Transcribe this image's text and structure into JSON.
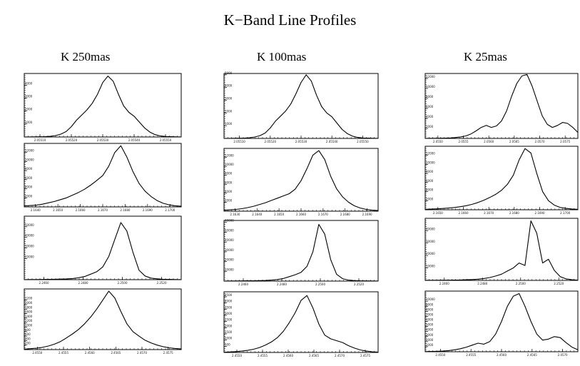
{
  "title": "K−Band Line Profiles",
  "columns": [
    {
      "label": "K 250mas"
    },
    {
      "label": "K 100mas"
    },
    {
      "label": "K 25mas"
    }
  ],
  "chart_data": [
    {
      "type": "line",
      "panel": "K 250mas row 1",
      "x": [
        2.05,
        2.0505,
        2.051,
        2.0515,
        2.052,
        2.0525,
        2.053,
        2.0535,
        2.054,
        2.0545,
        2.055,
        2.0555,
        2.056,
        2.0565,
        2.057,
        2.0575,
        2.058,
        2.0585,
        2.059,
        2.0595,
        2.06,
        2.0605,
        2.061,
        2.0615,
        2.062,
        2.0625,
        2.063,
        2.0635,
        2.064,
        2.0645,
        2.065
      ],
      "values": [
        5,
        8,
        12,
        18,
        30,
        55,
        110,
        220,
        420,
        800,
        1300,
        1700,
        2100,
        2600,
        3300,
        4200,
        4700,
        4300,
        3300,
        2400,
        1900,
        1600,
        1150,
        700,
        380,
        180,
        80,
        40,
        20,
        10,
        5
      ],
      "x_ticks": [
        "2.05510",
        "2.05520",
        "2.05530",
        "2.05540",
        "2.05550"
      ],
      "y_ticks": [
        "1000",
        "2000",
        "3000",
        "4000"
      ],
      "ylim": [
        0,
        4900
      ]
    },
    {
      "type": "line",
      "panel": "K 250mas row 2",
      "x": [
        2.164,
        2.1645,
        2.165,
        2.1655,
        2.166,
        2.1665,
        2.167,
        2.1675,
        2.168,
        2.1685,
        2.169,
        2.1695,
        2.17,
        2.1705,
        2.171,
        2.1715,
        2.172,
        2.1725,
        2.173,
        2.1735,
        2.174,
        2.1745,
        2.175,
        2.1755,
        2.176,
        2.1765,
        2.177
      ],
      "values": [
        200,
        300,
        400,
        600,
        900,
        1200,
        1600,
        2000,
        2600,
        3200,
        3900,
        4800,
        5800,
        6900,
        9000,
        12000,
        13500,
        11000,
        7800,
        5200,
        3500,
        2300,
        1400,
        800,
        450,
        250,
        150
      ],
      "x_ticks": [
        "2.1640",
        "2.1650",
        "2.1660",
        "2.1670",
        "2.1680",
        "2.1690",
        "2.1700"
      ],
      "y_ticks": [
        "2000",
        "4000",
        "6000",
        "8000",
        "10000",
        "12000"
      ],
      "ylim": [
        0,
        14000
      ]
    },
    {
      "type": "line",
      "panel": "K 250mas row 3",
      "x": [
        2.246,
        2.2465,
        2.247,
        2.2475,
        2.248,
        2.2485,
        2.249,
        2.2495,
        2.25,
        2.2505,
        2.251,
        2.2515,
        2.252,
        2.2525,
        2.253,
        2.2535,
        2.254,
        2.2545,
        2.255,
        2.2555,
        2.256,
        2.2565,
        2.257,
        2.2575,
        2.258,
        2.2585,
        2.259
      ],
      "values": [
        100,
        120,
        150,
        200,
        280,
        380,
        520,
        750,
        1100,
        1800,
        3000,
        5200,
        7500,
        12000,
        22000,
        38000,
        54000,
        46000,
        26000,
        9000,
        3500,
        1500,
        800,
        400,
        250,
        150,
        100
      ],
      "x_ticks": [
        "2.2460",
        "2.2480",
        "2.2500",
        "2.2520"
      ],
      "y_ticks": [
        "20000",
        "30000",
        "40000",
        "50000"
      ],
      "ylim": [
        0,
        60000
      ]
    },
    {
      "type": "line",
      "panel": "K 250mas row 4",
      "x": [
        2.45,
        2.4505,
        2.451,
        2.4515,
        2.452,
        2.4525,
        2.453,
        2.4535,
        2.454,
        2.4545,
        2.455,
        2.4555,
        2.456,
        2.4565,
        2.457,
        2.4575,
        2.458,
        2.4585,
        2.459,
        2.4595,
        2.46,
        2.4605,
        2.461,
        2.4615,
        2.462,
        2.4625,
        2.463
      ],
      "values": [
        20,
        40,
        60,
        100,
        160,
        240,
        360,
        520,
        700,
        900,
        1150,
        1450,
        1800,
        2200,
        2600,
        2300,
        1700,
        1150,
        800,
        600,
        420,
        300,
        200,
        130,
        80,
        50,
        30
      ],
      "x_ticks": [
        "2.4550",
        "2.4555",
        "2.4560",
        "2.4565",
        "2.4570",
        "2.4575"
      ],
      "y_ticks": [
        "200",
        "400",
        "600",
        "800",
        "1000",
        "1200",
        "1400",
        "1600",
        "1800",
        "2000",
        "2200"
      ],
      "ylim": [
        0,
        2700
      ]
    },
    {
      "type": "line",
      "panel": "K 100mas row 1",
      "x": [
        2.05,
        2.0505,
        2.051,
        2.0515,
        2.052,
        2.0525,
        2.053,
        2.0535,
        2.054,
        2.0545,
        2.055,
        2.0555,
        2.056,
        2.0565,
        2.057,
        2.0575,
        2.058,
        2.0585,
        2.059,
        2.0595,
        2.06,
        2.0605,
        2.061,
        2.0615,
        2.062,
        2.0625,
        2.063,
        2.0635,
        2.064,
        2.0645,
        2.065
      ],
      "values": [
        5,
        8,
        12,
        18,
        30,
        55,
        110,
        220,
        420,
        820,
        1350,
        1750,
        2150,
        2700,
        3500,
        4400,
        5000,
        4500,
        3400,
        2500,
        2000,
        1700,
        1200,
        700,
        380,
        180,
        80,
        40,
        20,
        10,
        5
      ],
      "x_ticks": [
        "2.05510",
        "2.05520",
        "2.05530",
        "2.05540",
        "2.05550"
      ],
      "y_ticks": [
        "1000",
        "2000",
        "3000",
        "4000",
        "5000"
      ],
      "ylim": [
        0,
        5100
      ]
    },
    {
      "type": "line",
      "panel": "K 100mas row 2",
      "x": [
        2.164,
        2.1645,
        2.165,
        2.1655,
        2.166,
        2.1665,
        2.167,
        2.1675,
        2.168,
        2.1685,
        2.169,
        2.1695,
        2.17,
        2.1705,
        2.171,
        2.1715,
        2.172,
        2.1725,
        2.173,
        2.1735,
        2.174,
        2.1745,
        2.175,
        2.1755,
        2.176,
        2.1765,
        2.177
      ],
      "values": [
        200,
        300,
        400,
        550,
        800,
        1100,
        1500,
        1900,
        2400,
        2900,
        3400,
        3900,
        4900,
        6800,
        9500,
        12500,
        13500,
        11500,
        7800,
        5000,
        3200,
        2000,
        1200,
        700,
        400,
        230,
        150
      ],
      "x_ticks": [
        "2.1630",
        "2.1640",
        "2.1650",
        "2.1660",
        "2.1670",
        "2.1680",
        "2.1690"
      ],
      "y_ticks": [
        "2000",
        "4000",
        "6000",
        "8000",
        "10000",
        "12000"
      ],
      "ylim": [
        0,
        14000
      ]
    },
    {
      "type": "line",
      "panel": "K 100mas row 3",
      "x": [
        2.246,
        2.2465,
        2.247,
        2.2475,
        2.248,
        2.2485,
        2.249,
        2.2495,
        2.25,
        2.2505,
        2.251,
        2.2515,
        2.252,
        2.2525,
        2.253,
        2.2535,
        2.254,
        2.2545,
        2.255,
        2.2555,
        2.256,
        2.2565,
        2.257,
        2.2575,
        2.258,
        2.2585,
        2.259
      ],
      "values": [
        100,
        120,
        150,
        200,
        260,
        350,
        480,
        680,
        1000,
        1600,
        2600,
        4500,
        6500,
        9000,
        15000,
        30000,
        58000,
        48000,
        22000,
        7000,
        2500,
        1000,
        500,
        300,
        200,
        130,
        100
      ],
      "x_ticks": [
        "2.2460",
        "2.2480",
        "2.2500",
        "2.2520"
      ],
      "y_ticks": [
        "10000",
        "20000",
        "30000",
        "40000",
        "50000",
        "60000"
      ],
      "ylim": [
        0,
        62000
      ]
    },
    {
      "type": "line",
      "panel": "K 100mas row 4",
      "x": [
        2.45,
        2.4505,
        2.451,
        2.4515,
        2.452,
        2.4525,
        2.453,
        2.4535,
        2.454,
        2.4545,
        2.455,
        2.4555,
        2.456,
        2.4565,
        2.457,
        2.4575,
        2.458,
        2.4585,
        2.459,
        2.4595,
        2.46,
        2.4605,
        2.461,
        2.4615,
        2.462,
        2.4625,
        2.463
      ],
      "values": [
        20,
        40,
        70,
        110,
        170,
        260,
        400,
        600,
        850,
        1200,
        1700,
        2400,
        3200,
        4200,
        4600,
        3600,
        2300,
        1400,
        1100,
        950,
        800,
        550,
        350,
        200,
        110,
        60,
        30
      ],
      "x_ticks": [
        "2.4550",
        "2.4555",
        "2.4560",
        "2.4565",
        "2.4570",
        "2.4575"
      ],
      "y_ticks": [
        "500",
        "1000",
        "1500",
        "2000",
        "2500",
        "3000",
        "3500",
        "4000",
        "4500"
      ],
      "ylim": [
        0,
        4900
      ]
    },
    {
      "type": "line",
      "panel": "K 25mas row 1",
      "x": [
        2.053,
        2.0535,
        2.054,
        2.0545,
        2.055,
        2.0555,
        2.056,
        2.0565,
        2.057,
        2.0575,
        2.058,
        2.0585,
        2.059,
        2.0595,
        2.06,
        2.0605,
        2.061,
        2.0615,
        2.062,
        2.0625,
        2.063,
        2.0635,
        2.064,
        2.0645,
        2.065,
        2.0655,
        2.066,
        2.0665,
        2.067,
        2.0675,
        2.068
      ],
      "values": [
        20,
        25,
        30,
        40,
        60,
        100,
        180,
        300,
        500,
        900,
        1500,
        2200,
        2600,
        2200,
        2500,
        3500,
        5500,
        8500,
        11000,
        12500,
        12800,
        10500,
        7500,
        4500,
        2800,
        2200,
        2600,
        3200,
        3000,
        2200,
        1200
      ],
      "x_ticks": [
        "2.0550",
        "2.0555",
        "2.0560",
        "2.0565",
        "2.0570",
        "2.0575"
      ],
      "y_ticks": [
        "2000",
        "4000",
        "6000",
        "8000",
        "10000",
        "12000"
      ],
      "ylim": [
        0,
        13000
      ]
    },
    {
      "type": "line",
      "panel": "K 25mas row 2",
      "x": [
        2.164,
        2.1645,
        2.165,
        2.1655,
        2.166,
        2.1665,
        2.167,
        2.1675,
        2.168,
        2.1685,
        2.169,
        2.1695,
        2.17,
        2.1705,
        2.171,
        2.1715,
        2.172,
        2.1725,
        2.173,
        2.1735,
        2.174,
        2.1745,
        2.175,
        2.1755,
        2.176,
        2.1765,
        2.177
      ],
      "values": [
        100,
        150,
        200,
        280,
        380,
        500,
        680,
        900,
        1200,
        1600,
        2100,
        2700,
        3400,
        4300,
        5600,
        7600,
        11000,
        13500,
        12500,
        8000,
        4000,
        2000,
        1000,
        500,
        300,
        180,
        100
      ],
      "x_ticks": [
        "2.1650",
        "2.1660",
        "2.1670",
        "2.1680",
        "2.1690",
        "2.1700"
      ],
      "y_ticks": [
        "2000",
        "4000",
        "6000",
        "8000",
        "10000",
        "12000"
      ],
      "ylim": [
        0,
        14000
      ]
    },
    {
      "type": "line",
      "panel": "K 25mas row 3",
      "x": [
        2.246,
        2.2465,
        2.247,
        2.2475,
        2.248,
        2.2485,
        2.249,
        2.2495,
        2.25,
        2.2505,
        2.251,
        2.2515,
        2.252,
        2.2525,
        2.253,
        2.2535,
        2.254,
        2.2545,
        2.255,
        2.2555,
        2.256,
        2.2565,
        2.257,
        2.2575,
        2.258,
        2.2585,
        2.259
      ],
      "values": [
        100,
        110,
        130,
        160,
        200,
        260,
        350,
        500,
        700,
        1000,
        1500,
        2300,
        3500,
        5000,
        7500,
        10000,
        14000,
        12000,
        48000,
        38000,
        14000,
        17000,
        8000,
        3000,
        1200,
        500,
        200
      ],
      "x_ticks": [
        "2.2460",
        "2.2480",
        "2.2500",
        "2.2520"
      ],
      "y_ticks": [
        "10000",
        "20000",
        "30000",
        "40000"
      ],
      "ylim": [
        0,
        50000
      ]
    },
    {
      "type": "line",
      "panel": "K 25mas row 4",
      "x": [
        2.45,
        2.4505,
        2.451,
        2.4515,
        2.452,
        2.4525,
        2.453,
        2.4535,
        2.454,
        2.4545,
        2.455,
        2.4555,
        2.456,
        2.4565,
        2.457,
        2.4575,
        2.458,
        2.4585,
        2.459,
        2.4595,
        2.46,
        2.4605,
        2.461,
        2.4615,
        2.462,
        2.4625,
        2.463
      ],
      "values": [
        30,
        50,
        80,
        130,
        220,
        380,
        600,
        900,
        1300,
        1700,
        1500,
        2000,
        3500,
        6000,
        9000,
        11000,
        11500,
        9000,
        6000,
        3500,
        2300,
        2500,
        3000,
        2800,
        1800,
        900,
        400
      ],
      "x_ticks": [
        "2.4550",
        "2.4555",
        "2.4560",
        "2.4565",
        "2.4570"
      ],
      "y_ticks": [
        "1000",
        "2000",
        "3000",
        "4000",
        "5000",
        "6000",
        "7000",
        "8000",
        "9000",
        "10000"
      ],
      "ylim": [
        0,
        12000
      ]
    }
  ]
}
